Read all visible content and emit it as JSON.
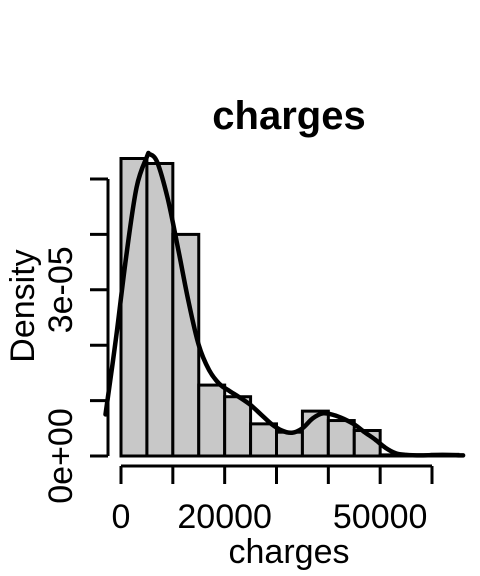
{
  "chart_data": {
    "type": "bar",
    "title": "charges",
    "xlabel": "charges",
    "ylabel": "Density",
    "bin_width": 5000,
    "bins": [
      {
        "start": 0,
        "end": 5000,
        "density": 5.37e-05
      },
      {
        "start": 5000,
        "end": 10000,
        "density": 5.28e-05
      },
      {
        "start": 10000,
        "end": 15000,
        "density": 4e-05
      },
      {
        "start": 15000,
        "end": 20000,
        "density": 1.28e-05
      },
      {
        "start": 20000,
        "end": 25000,
        "density": 1.07e-05
      },
      {
        "start": 25000,
        "end": 30000,
        "density": 5.8e-06
      },
      {
        "start": 30000,
        "end": 35000,
        "density": 4.3e-06
      },
      {
        "start": 35000,
        "end": 40000,
        "density": 8.1e-06
      },
      {
        "start": 40000,
        "end": 45000,
        "density": 6.4e-06
      },
      {
        "start": 45000,
        "end": 50000,
        "density": 4.6e-06
      },
      {
        "start": 50000,
        "end": 55000,
        "density": 2e-07
      },
      {
        "start": 55000,
        "end": 60000,
        "density": 2e-07
      },
      {
        "start": 60000,
        "end": 65000,
        "density": 3e-07
      }
    ],
    "density_curve": {
      "x": [
        -3000,
        -1000,
        1000,
        3000,
        5000,
        5500,
        7000,
        9000,
        11000,
        13000,
        15000,
        17000,
        19000,
        21000,
        23000,
        25000,
        27000,
        29000,
        31000,
        33000,
        35000,
        37000,
        39000,
        41000,
        43000,
        45000,
        47000,
        49000,
        51000,
        53000,
        55000,
        58000,
        62000,
        66000
      ],
      "y": [
        7.5e-06,
        2.1e-05,
        3.6e-05,
        4.85e-05,
        5.4e-05,
        5.45e-05,
        5.3e-05,
        4.65e-05,
        3.75e-05,
        2.8e-05,
        2e-05,
        1.55e-05,
        1.3e-05,
        1.17e-05,
        1.05e-05,
        9.2e-06,
        7.5e-06,
        5.8e-06,
        4.6e-06,
        4.2e-06,
        5e-06,
        6.8e-06,
        7.7e-06,
        7.4e-06,
        6.7e-06,
        5.7e-06,
        4.3e-06,
        3e-06,
        1.5e-06,
        5e-07,
        2e-07,
        1e-07,
        2e-07,
        1e-07
      ]
    },
    "x_ticks": [
      {
        "value": 0,
        "label": "0"
      },
      {
        "value": 10000,
        "label": ""
      },
      {
        "value": 20000,
        "label": "20000"
      },
      {
        "value": 30000,
        "label": ""
      },
      {
        "value": 40000,
        "label": ""
      },
      {
        "value": 50000,
        "label": "50000"
      },
      {
        "value": 60000,
        "label": ""
      }
    ],
    "y_ticks": [
      {
        "value": 0,
        "label": "0e+00"
      },
      {
        "value": 1e-05,
        "label": ""
      },
      {
        "value": 2e-05,
        "label": ""
      },
      {
        "value": 3e-05,
        "label": "3e-05"
      },
      {
        "value": 4e-05,
        "label": ""
      },
      {
        "value": 5e-05,
        "label": ""
      }
    ],
    "xlim": [
      -3000,
      66000
    ],
    "ylim": [
      0,
      5.5e-05
    ],
    "grid": false,
    "legend": "none",
    "colors": {
      "bar_fill": "#c8c8c8",
      "bar_stroke": "#000000",
      "line": "#000000"
    }
  }
}
